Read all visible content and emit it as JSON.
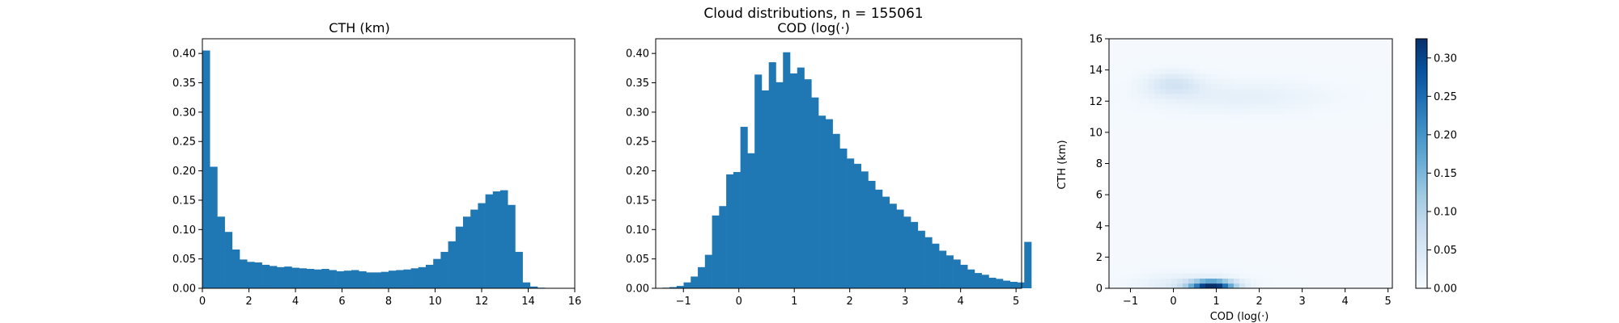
{
  "figure": {
    "suptitle": "Cloud distributions, n = 155061"
  },
  "colors": {
    "bar": "#1f77b4",
    "axis": "#000000",
    "cmap_low": "#f7fbff",
    "cmap_high": "#08306b"
  },
  "chart_data": [
    {
      "type": "bar",
      "title": "CTH (km)",
      "xlabel": "",
      "ylabel": "",
      "xlim": [
        0,
        16
      ],
      "ylim": [
        0,
        0.425
      ],
      "xticks": [
        "0",
        "2",
        "4",
        "6",
        "8",
        "10",
        "12",
        "14",
        "16"
      ],
      "yticks": [
        "0.00",
        "0.05",
        "0.10",
        "0.15",
        "0.20",
        "0.25",
        "0.30",
        "0.35",
        "0.40"
      ],
      "bin_start": 0,
      "bin_width": 0.32,
      "values": [
        0.405,
        0.207,
        0.122,
        0.096,
        0.066,
        0.049,
        0.045,
        0.044,
        0.04,
        0.038,
        0.036,
        0.037,
        0.035,
        0.034,
        0.033,
        0.032,
        0.033,
        0.031,
        0.029,
        0.03,
        0.031,
        0.029,
        0.027,
        0.027,
        0.028,
        0.03,
        0.031,
        0.032,
        0.034,
        0.036,
        0.04,
        0.05,
        0.062,
        0.08,
        0.105,
        0.122,
        0.134,
        0.145,
        0.16,
        0.165,
        0.167,
        0.142,
        0.062,
        0.01,
        0.003,
        0.001,
        0.0003,
        0.0001,
        0.0001,
        0.0
      ]
    },
    {
      "type": "bar",
      "title": "COD (log(·)",
      "xlabel": "",
      "ylabel": "",
      "xlim": [
        -1.5,
        5.1
      ],
      "ylim": [
        0,
        0.425
      ],
      "xticks": [
        "−1",
        "0",
        "1",
        "2",
        "3",
        "4",
        "5"
      ],
      "yticks": [
        "0.00",
        "0.05",
        "0.10",
        "0.15",
        "0.20",
        "0.25",
        "0.30",
        "0.35",
        "0.40"
      ],
      "bin_start": -1.38,
      "bin_width": 0.128,
      "values": [
        0.001,
        0.002,
        0.004,
        0.01,
        0.02,
        0.036,
        0.057,
        0.124,
        0.14,
        0.194,
        0.198,
        0.275,
        0.23,
        0.364,
        0.337,
        0.385,
        0.351,
        0.402,
        0.366,
        0.376,
        0.356,
        0.325,
        0.294,
        0.288,
        0.263,
        0.238,
        0.221,
        0.212,
        0.199,
        0.183,
        0.168,
        0.156,
        0.144,
        0.134,
        0.122,
        0.113,
        0.098,
        0.087,
        0.076,
        0.064,
        0.056,
        0.049,
        0.04,
        0.032,
        0.026,
        0.023,
        0.018,
        0.016,
        0.013,
        0.011,
        0.01,
        0.079
      ]
    },
    {
      "type": "heatmap",
      "title": "",
      "xlabel": "COD (log(·)",
      "ylabel": "CTH (km)",
      "xlim": [
        -1.5,
        5.1
      ],
      "ylim": [
        0,
        16
      ],
      "xticks": [
        "−1",
        "0",
        "1",
        "2",
        "3",
        "4",
        "5"
      ],
      "yticks": [
        "0",
        "2",
        "4",
        "6",
        "8",
        "10",
        "12",
        "14",
        "16"
      ],
      "colorbar": {
        "range": [
          0,
          0.325
        ],
        "ticks": [
          "0.00",
          "0.05",
          "0.10",
          "0.15",
          "0.20",
          "0.25",
          "0.30"
        ]
      },
      "grid": {
        "nx": 50,
        "ny": 50
      },
      "features": [
        {
          "x": 0.9,
          "y": 0.2,
          "sx": 0.35,
          "sy": 0.22,
          "amp": 0.32
        },
        {
          "x": 0.4,
          "y": 0.2,
          "sx": 0.8,
          "sy": 0.5,
          "amp": 0.04
        },
        {
          "x": 0.0,
          "y": 13.1,
          "sx": 0.45,
          "sy": 0.55,
          "amp": 0.05
        },
        {
          "x": 1.5,
          "y": 12.3,
          "sx": 1.4,
          "sy": 0.7,
          "amp": 0.025
        }
      ]
    }
  ]
}
